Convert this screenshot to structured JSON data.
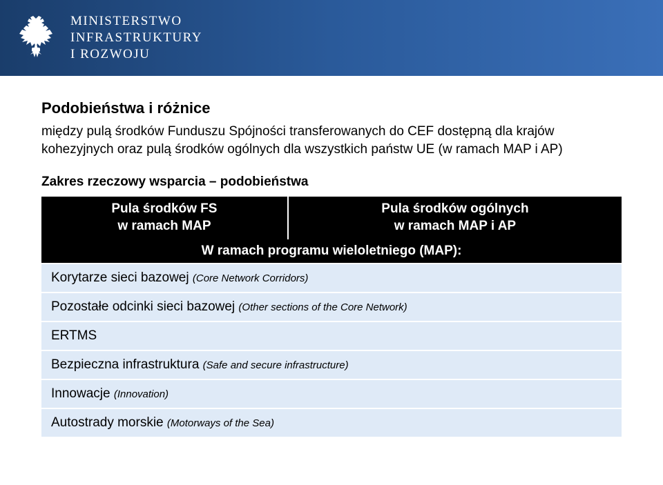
{
  "header": {
    "ministry_line1": "MINISTERSTWO",
    "ministry_line2": "INFRASTRUKTURY",
    "ministry_line3": "I ROZWOJU",
    "bg_gradient_start": "#1a3d6b",
    "bg_gradient_end": "#3a6fb8"
  },
  "title": "Podobieństwa i różnice",
  "subtitle": "między pulą środków Funduszu Spójności transferowanych do CEF dostępną dla krajów kohezyjnych oraz pulą środków ogólnych dla wszystkich państw UE (w ramach MAP i AP)",
  "section_heading": "Zakres rzeczowy wsparcia – podobieństwa",
  "table": {
    "header_left_line1": "Pula środków FS",
    "header_left_line2": "w ramach MAP",
    "header_right_line1": "Pula środków ogólnych",
    "header_right_line2": "w ramach MAP i AP",
    "subheader": "W ramach programu wieloletniego (MAP):",
    "header_bg": "#000000",
    "header_fg": "#ffffff",
    "row_bg": "#dfeaf7",
    "rows": [
      {
        "main": "Korytarze sieci bazowej ",
        "note": "(Core Network Corridors)"
      },
      {
        "main": "Pozostałe odcinki sieci bazowej ",
        "note": "(Other sections of the Core Network)"
      },
      {
        "main": "ERTMS",
        "note": ""
      },
      {
        "main": "Bezpieczna infrastruktura ",
        "note": "(Safe and secure infrastructure)"
      },
      {
        "main": "Innowacje ",
        "note": "(Innovation)"
      },
      {
        "main": "Autostrady morskie ",
        "note": "(Motorways of the Sea)"
      }
    ]
  }
}
